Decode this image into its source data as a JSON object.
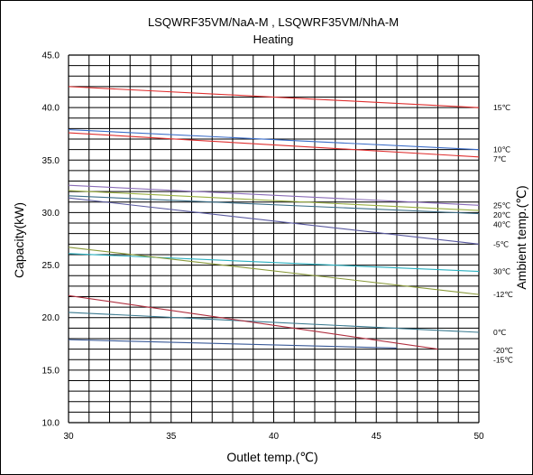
{
  "chart_data": {
    "type": "line",
    "title": "LSQWRF35VM/NaA-M , LSQWRF35VM/NhA-M",
    "subtitle": "Heating",
    "xlabel": "Outlet temp.(℃)",
    "ylabel": "Capacity(kW)",
    "y2label": "Ambient temp.(℃)",
    "xlim": [
      30,
      50
    ],
    "ylim": [
      10,
      45
    ],
    "xticks": [
      "30",
      "35",
      "40",
      "45",
      "50"
    ],
    "yticks": [
      "10.0",
      "15.0",
      "20.0",
      "25.0",
      "30.0",
      "35.0",
      "40.0",
      "45.0"
    ],
    "grid": true,
    "series": [
      {
        "name": "15℃",
        "color": "#e03030",
        "x": [
          30,
          50
        ],
        "values": [
          42.0,
          40.0
        ]
      },
      {
        "name": "10℃",
        "color": "#3a6cc8",
        "x": [
          30,
          50
        ],
        "values": [
          37.9,
          36.0
        ]
      },
      {
        "name": "7℃",
        "color": "#e03030",
        "x": [
          30,
          50
        ],
        "values": [
          37.6,
          35.3
        ]
      },
      {
        "name": "25℃",
        "color": "#8a6cb8",
        "x": [
          30,
          50
        ],
        "values": [
          32.6,
          30.7
        ]
      },
      {
        "name": "20℃",
        "color": "#9ab040",
        "x": [
          30,
          50
        ],
        "values": [
          32.1,
          30.2
        ]
      },
      {
        "name": "40℃",
        "color": "#3a6e88",
        "x": [
          30,
          50
        ],
        "values": [
          31.6,
          29.9
        ]
      },
      {
        "name": "-5℃",
        "color": "#5a5aa0",
        "x": [
          30,
          50
        ],
        "values": [
          31.4,
          27.0
        ]
      },
      {
        "name": "30℃",
        "color": "#2ab0c0",
        "x": [
          30,
          50
        ],
        "values": [
          26.1,
          24.4
        ]
      },
      {
        "name": "-12℃",
        "color": "#8a9a3a",
        "x": [
          30,
          50
        ],
        "values": [
          26.7,
          22.2
        ]
      },
      {
        "name": "0℃",
        "color": "#3a7a90",
        "x": [
          30,
          50
        ],
        "values": [
          20.5,
          18.6
        ]
      },
      {
        "name": "-15℃",
        "color": "#b03040",
        "x": [
          30,
          48
        ],
        "values": [
          22.1,
          17.0
        ]
      },
      {
        "name": "-20℃",
        "color": "#3a5a98",
        "x": [
          30,
          46
        ],
        "values": [
          17.9,
          17.1
        ]
      }
    ]
  }
}
